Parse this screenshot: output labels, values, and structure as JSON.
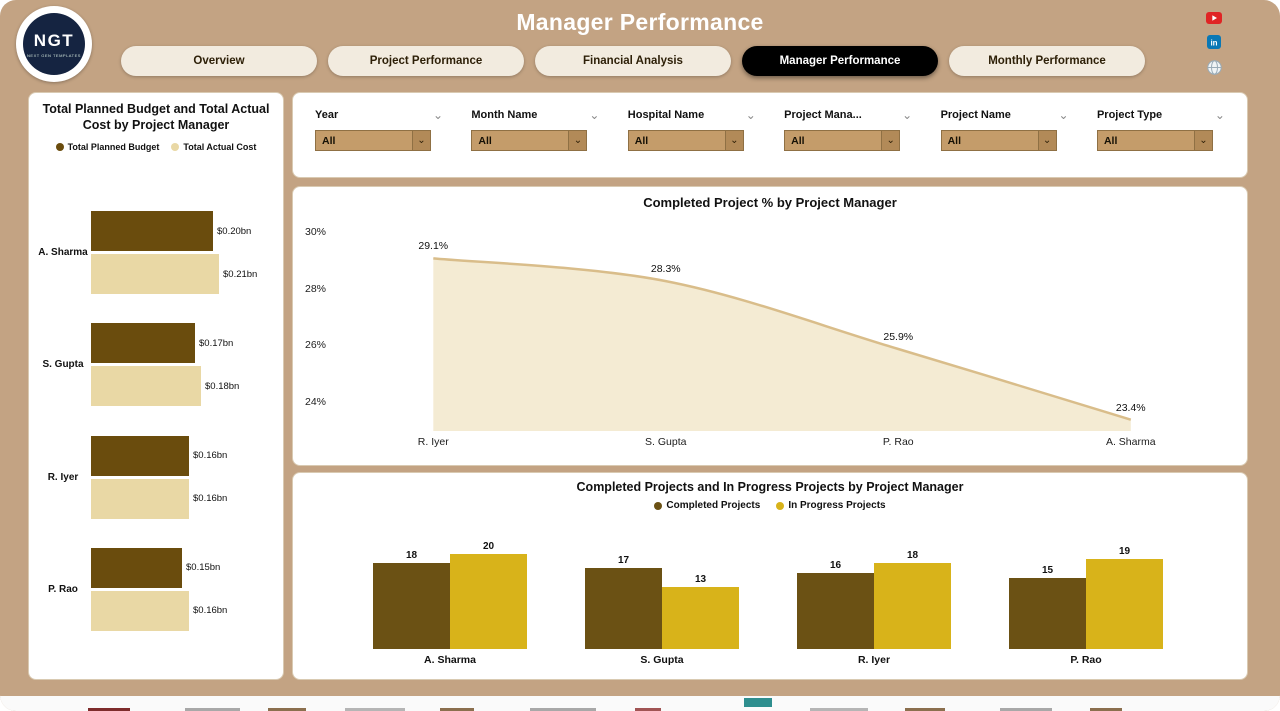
{
  "header": {
    "title": "Manager Performance",
    "logo": {
      "text": "NGT",
      "subtext": "NEXT GEN TEMPLATES"
    },
    "tabs": [
      {
        "label": "Overview",
        "active": false
      },
      {
        "label": "Project Performance",
        "active": false
      },
      {
        "label": "Financial Analysis",
        "active": false
      },
      {
        "label": "Manager Performance",
        "active": true
      },
      {
        "label": "Monthly Performance",
        "active": false
      }
    ]
  },
  "filters": [
    {
      "label": "Year",
      "value": "All"
    },
    {
      "label": "Month Name",
      "value": "All"
    },
    {
      "label": "Hospital Name",
      "value": "All"
    },
    {
      "label": "Project Mana...",
      "value": "All"
    },
    {
      "label": "Project Name",
      "value": "All"
    },
    {
      "label": "Project Type",
      "value": "All"
    }
  ],
  "colors": {
    "background": "#c3a383",
    "planned_budget": "#6a4c0d",
    "actual_cost": "#e9d8a5",
    "completed": "#6b5114",
    "in_progress": "#d8b31a",
    "area_fill": "#f4ebd3",
    "area_line": "#d9bd8a"
  },
  "chart_data": [
    {
      "type": "bar",
      "orientation": "horizontal",
      "title": "Total Planned Budget and Total Actual Cost by Project Manager",
      "categories": [
        "A. Sharma",
        "S. Gupta",
        "R. Iyer",
        "P. Rao"
      ],
      "series": [
        {
          "name": "Total Planned Budget",
          "values": [
            0.2,
            0.17,
            0.16,
            0.15
          ],
          "labels": [
            "$0.20bn",
            "$0.17bn",
            "$0.16bn",
            "$0.15bn"
          ]
        },
        {
          "name": "Total Actual Cost",
          "values": [
            0.21,
            0.18,
            0.16,
            0.16
          ],
          "labels": [
            "$0.21bn",
            "$0.18bn",
            "$0.16bn",
            "$0.16bn"
          ]
        }
      ],
      "xlim": [
        0,
        0.21
      ]
    },
    {
      "type": "area",
      "title": "Completed Project % by Project Manager",
      "categories": [
        "R. Iyer",
        "S. Gupta",
        "P. Rao",
        "A. Sharma"
      ],
      "values": [
        29.1,
        28.3,
        25.9,
        23.4
      ],
      "labels": [
        "29.1%",
        "28.3%",
        "25.9%",
        "23.4%"
      ],
      "yticks": [
        {
          "label": "30%",
          "value": 30
        },
        {
          "label": "28%",
          "value": 28
        },
        {
          "label": "26%",
          "value": 26
        },
        {
          "label": "24%",
          "value": 24
        }
      ],
      "ylim": [
        23,
        30.6
      ]
    },
    {
      "type": "bar",
      "title": "Completed Projects and In Progress Projects by Project Manager",
      "categories": [
        "A. Sharma",
        "S. Gupta",
        "R. Iyer",
        "P. Rao"
      ],
      "series": [
        {
          "name": "Completed Projects",
          "values": [
            18,
            17,
            16,
            15
          ]
        },
        {
          "name": "In Progress Projects",
          "values": [
            20,
            13,
            18,
            19
          ]
        }
      ],
      "ylim": [
        0,
        21
      ]
    }
  ]
}
